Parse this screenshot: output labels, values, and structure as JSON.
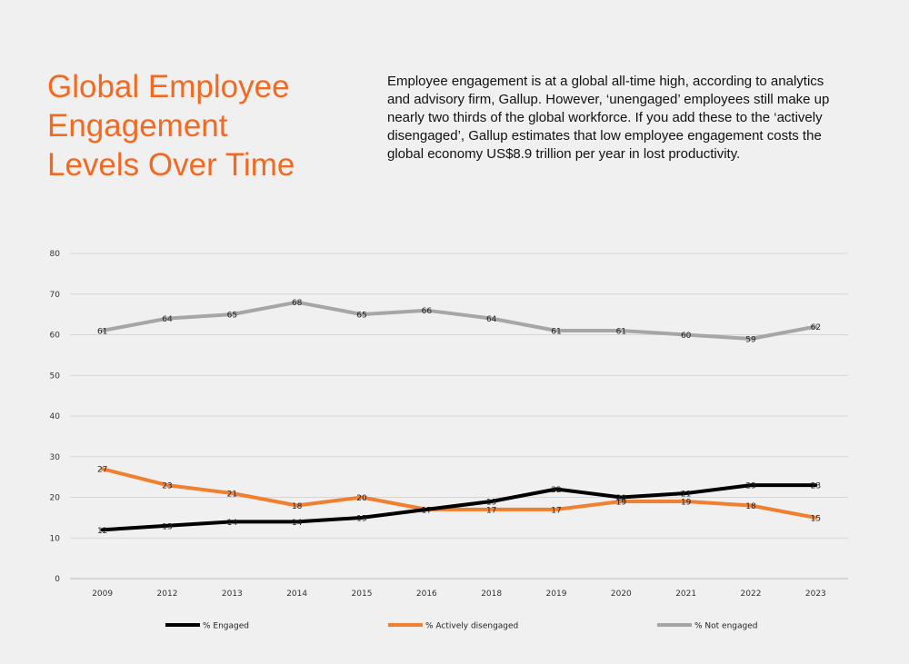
{
  "heading": {
    "title_lines": [
      "Global Employee",
      "Engagement",
      "Levels Over Time"
    ]
  },
  "intro_text": "Employee engagement is at a global all-time high, according to analytics and advisory firm, Gallup. However, ‘unengaged’ employees still make up nearly two thirds of the global workforce. If you add these to the ‘actively disengaged’, Gallup estimates that low employee engagement costs the global economy US$8.9 trillion per year in lost productivity.",
  "colors": {
    "title": "#f26a21",
    "engaged": "#000000",
    "actively_disengaged": "#f07f30",
    "not_engaged": "#a6a6a6",
    "grid": "#d6d6d6"
  },
  "chart_data": {
    "type": "line",
    "title": "",
    "xlabel": "",
    "ylabel": "",
    "categories": [
      "2009",
      "2012",
      "2013",
      "2014",
      "2015",
      "2016",
      "2018",
      "2019",
      "2020",
      "2021",
      "2022",
      "2023"
    ],
    "ylim": [
      0,
      80
    ],
    "yticks": [
      0,
      10,
      20,
      30,
      40,
      50,
      60,
      70,
      80
    ],
    "grid": true,
    "legend_position": "bottom",
    "series": [
      {
        "key": "engaged",
        "name": "% Engaged",
        "values": [
          12,
          13,
          14,
          14,
          15,
          17,
          19,
          22,
          20,
          21,
          23,
          23
        ]
      },
      {
        "key": "actively_disengaged",
        "name": "% Actively disengaged",
        "values": [
          27,
          23,
          21,
          18,
          20,
          17,
          17,
          17,
          19,
          19,
          18,
          15
        ]
      },
      {
        "key": "not_engaged",
        "name": "% Not engaged",
        "values": [
          61,
          64,
          65,
          68,
          65,
          66,
          64,
          61,
          61,
          60,
          59,
          62
        ]
      }
    ]
  }
}
